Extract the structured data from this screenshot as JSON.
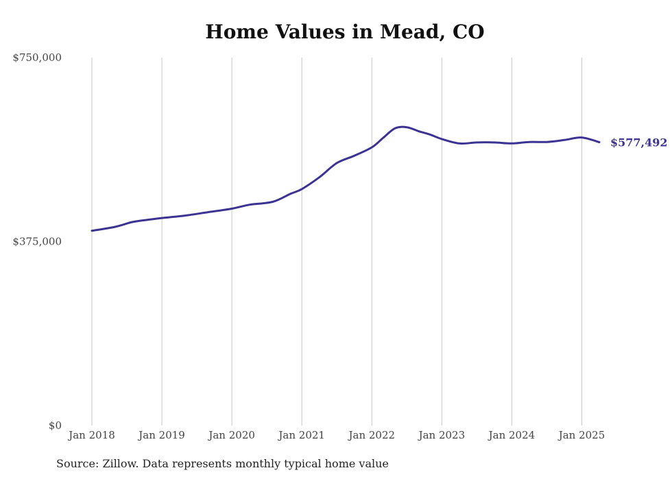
{
  "chart_data": {
    "type": "line",
    "title": "Home Values in Mead, CO",
    "xlabel": "",
    "ylabel": "",
    "ylim": [
      0,
      750000
    ],
    "xlim": [
      "2018-01",
      "2025-04"
    ],
    "y_ticks": [
      "$0",
      "$375,000",
      "$750,000"
    ],
    "x_ticks": [
      "Jan 2018",
      "Jan 2019",
      "Jan 2020",
      "Jan 2021",
      "Jan 2022",
      "Jan 2023",
      "Jan 2024",
      "Jan 2025"
    ],
    "grid": "vertical",
    "end_label": "$577,492",
    "line_color": "#3b3291",
    "series": [
      {
        "values": [
          {
            "x": "2018-01",
            "y": 397000
          },
          {
            "x": "2018-05",
            "y": 405000
          },
          {
            "x": "2018-08",
            "y": 415000
          },
          {
            "x": "2018-11",
            "y": 420000
          },
          {
            "x": "2019-01",
            "y": 423000
          },
          {
            "x": "2019-05",
            "y": 428000
          },
          {
            "x": "2019-09",
            "y": 435000
          },
          {
            "x": "2020-01",
            "y": 442000
          },
          {
            "x": "2020-04",
            "y": 450000
          },
          {
            "x": "2020-08",
            "y": 456000
          },
          {
            "x": "2020-11",
            "y": 472000
          },
          {
            "x": "2021-01",
            "y": 482000
          },
          {
            "x": "2021-04",
            "y": 506000
          },
          {
            "x": "2021-07",
            "y": 535000
          },
          {
            "x": "2021-10",
            "y": 550000
          },
          {
            "x": "2022-01",
            "y": 567000
          },
          {
            "x": "2022-03",
            "y": 587000
          },
          {
            "x": "2022-05",
            "y": 606000
          },
          {
            "x": "2022-07",
            "y": 608000
          },
          {
            "x": "2022-09",
            "y": 600000
          },
          {
            "x": "2022-11",
            "y": 593000
          },
          {
            "x": "2023-01",
            "y": 584000
          },
          {
            "x": "2023-04",
            "y": 575000
          },
          {
            "x": "2023-07",
            "y": 577000
          },
          {
            "x": "2023-10",
            "y": 577000
          },
          {
            "x": "2024-01",
            "y": 575000
          },
          {
            "x": "2024-04",
            "y": 578000
          },
          {
            "x": "2024-07",
            "y": 578000
          },
          {
            "x": "2024-10",
            "y": 582000
          },
          {
            "x": "2025-01",
            "y": 587000
          },
          {
            "x": "2025-04",
            "y": 577492
          }
        ]
      }
    ]
  },
  "source_note": "Source: Zillow. Data represents monthly typical home value"
}
